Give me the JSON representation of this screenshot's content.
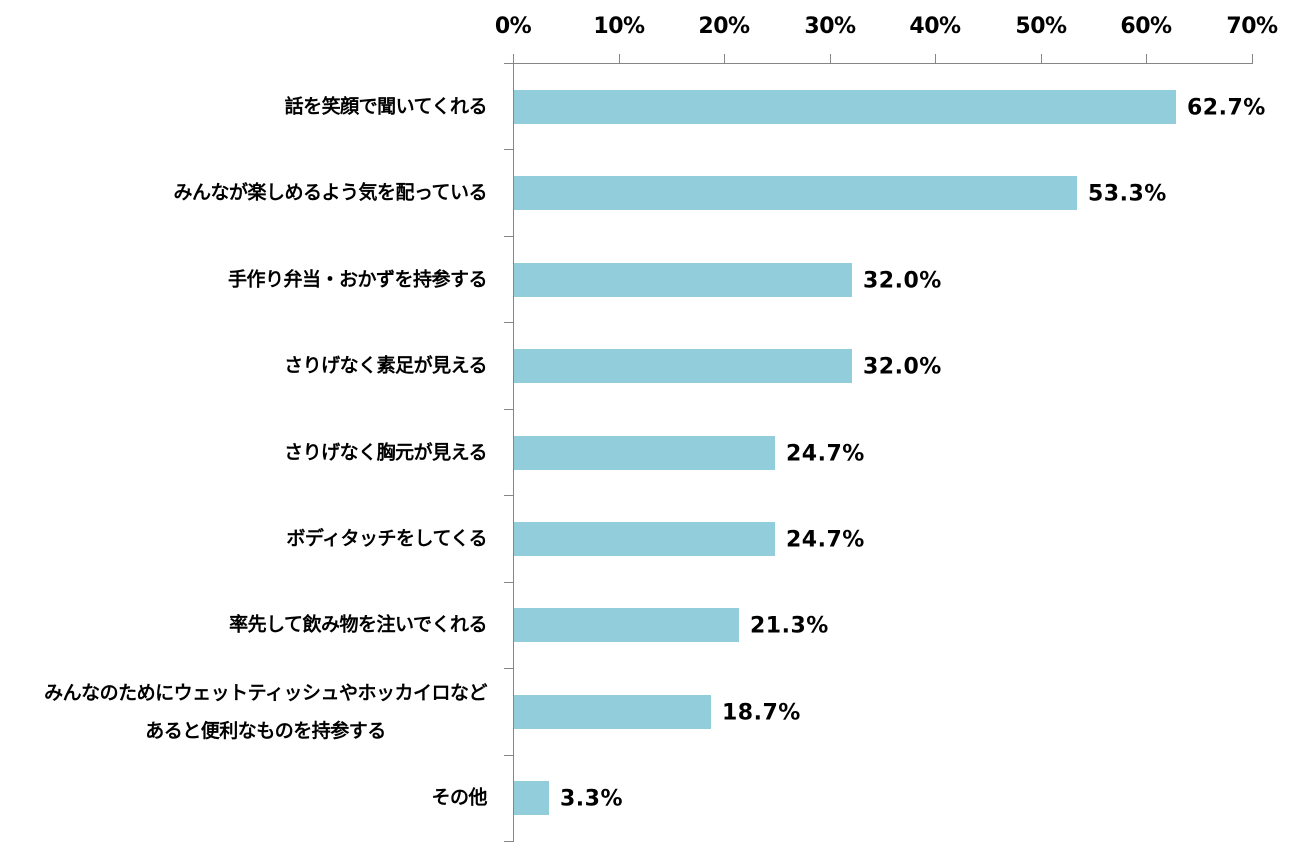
{
  "chart_data": {
    "type": "bar",
    "orientation": "horizontal",
    "title": "",
    "xlabel": "",
    "ylabel": "",
    "xlim": [
      0,
      70
    ],
    "x_ticks": [
      "0%",
      "10%",
      "20%",
      "30%",
      "40%",
      "50%",
      "60%",
      "70%"
    ],
    "x_axis_position": "top",
    "grid": false,
    "legend": null,
    "bar_color": "#92CDDC",
    "categories": [
      "話を笑顔で聞いてくれる",
      "みんなが楽しめるよう気を配っている",
      "手作り弁当・おかずを持参する",
      "さりげなく素足が見える",
      "さりげなく胸元が見える",
      "ボディタッチをしてくる",
      "率先して飲み物を注いでくれる",
      "みんなのためにウェットティッシュやホッカイロなど\nあると便利なものを持参する",
      "その他"
    ],
    "values": [
      62.7,
      53.3,
      32.0,
      32.0,
      24.7,
      24.7,
      21.3,
      18.7,
      3.3
    ],
    "value_labels": [
      "62.7%",
      "53.3%",
      "32.0%",
      "32.0%",
      "24.7%",
      "24.7%",
      "21.3%",
      "18.7%",
      "3.3%"
    ]
  },
  "labels": {
    "multiline_line1": "みんなのためにウェットティッシュやホッカイロなど",
    "multiline_line2": "あると便利なものを持参する"
  }
}
